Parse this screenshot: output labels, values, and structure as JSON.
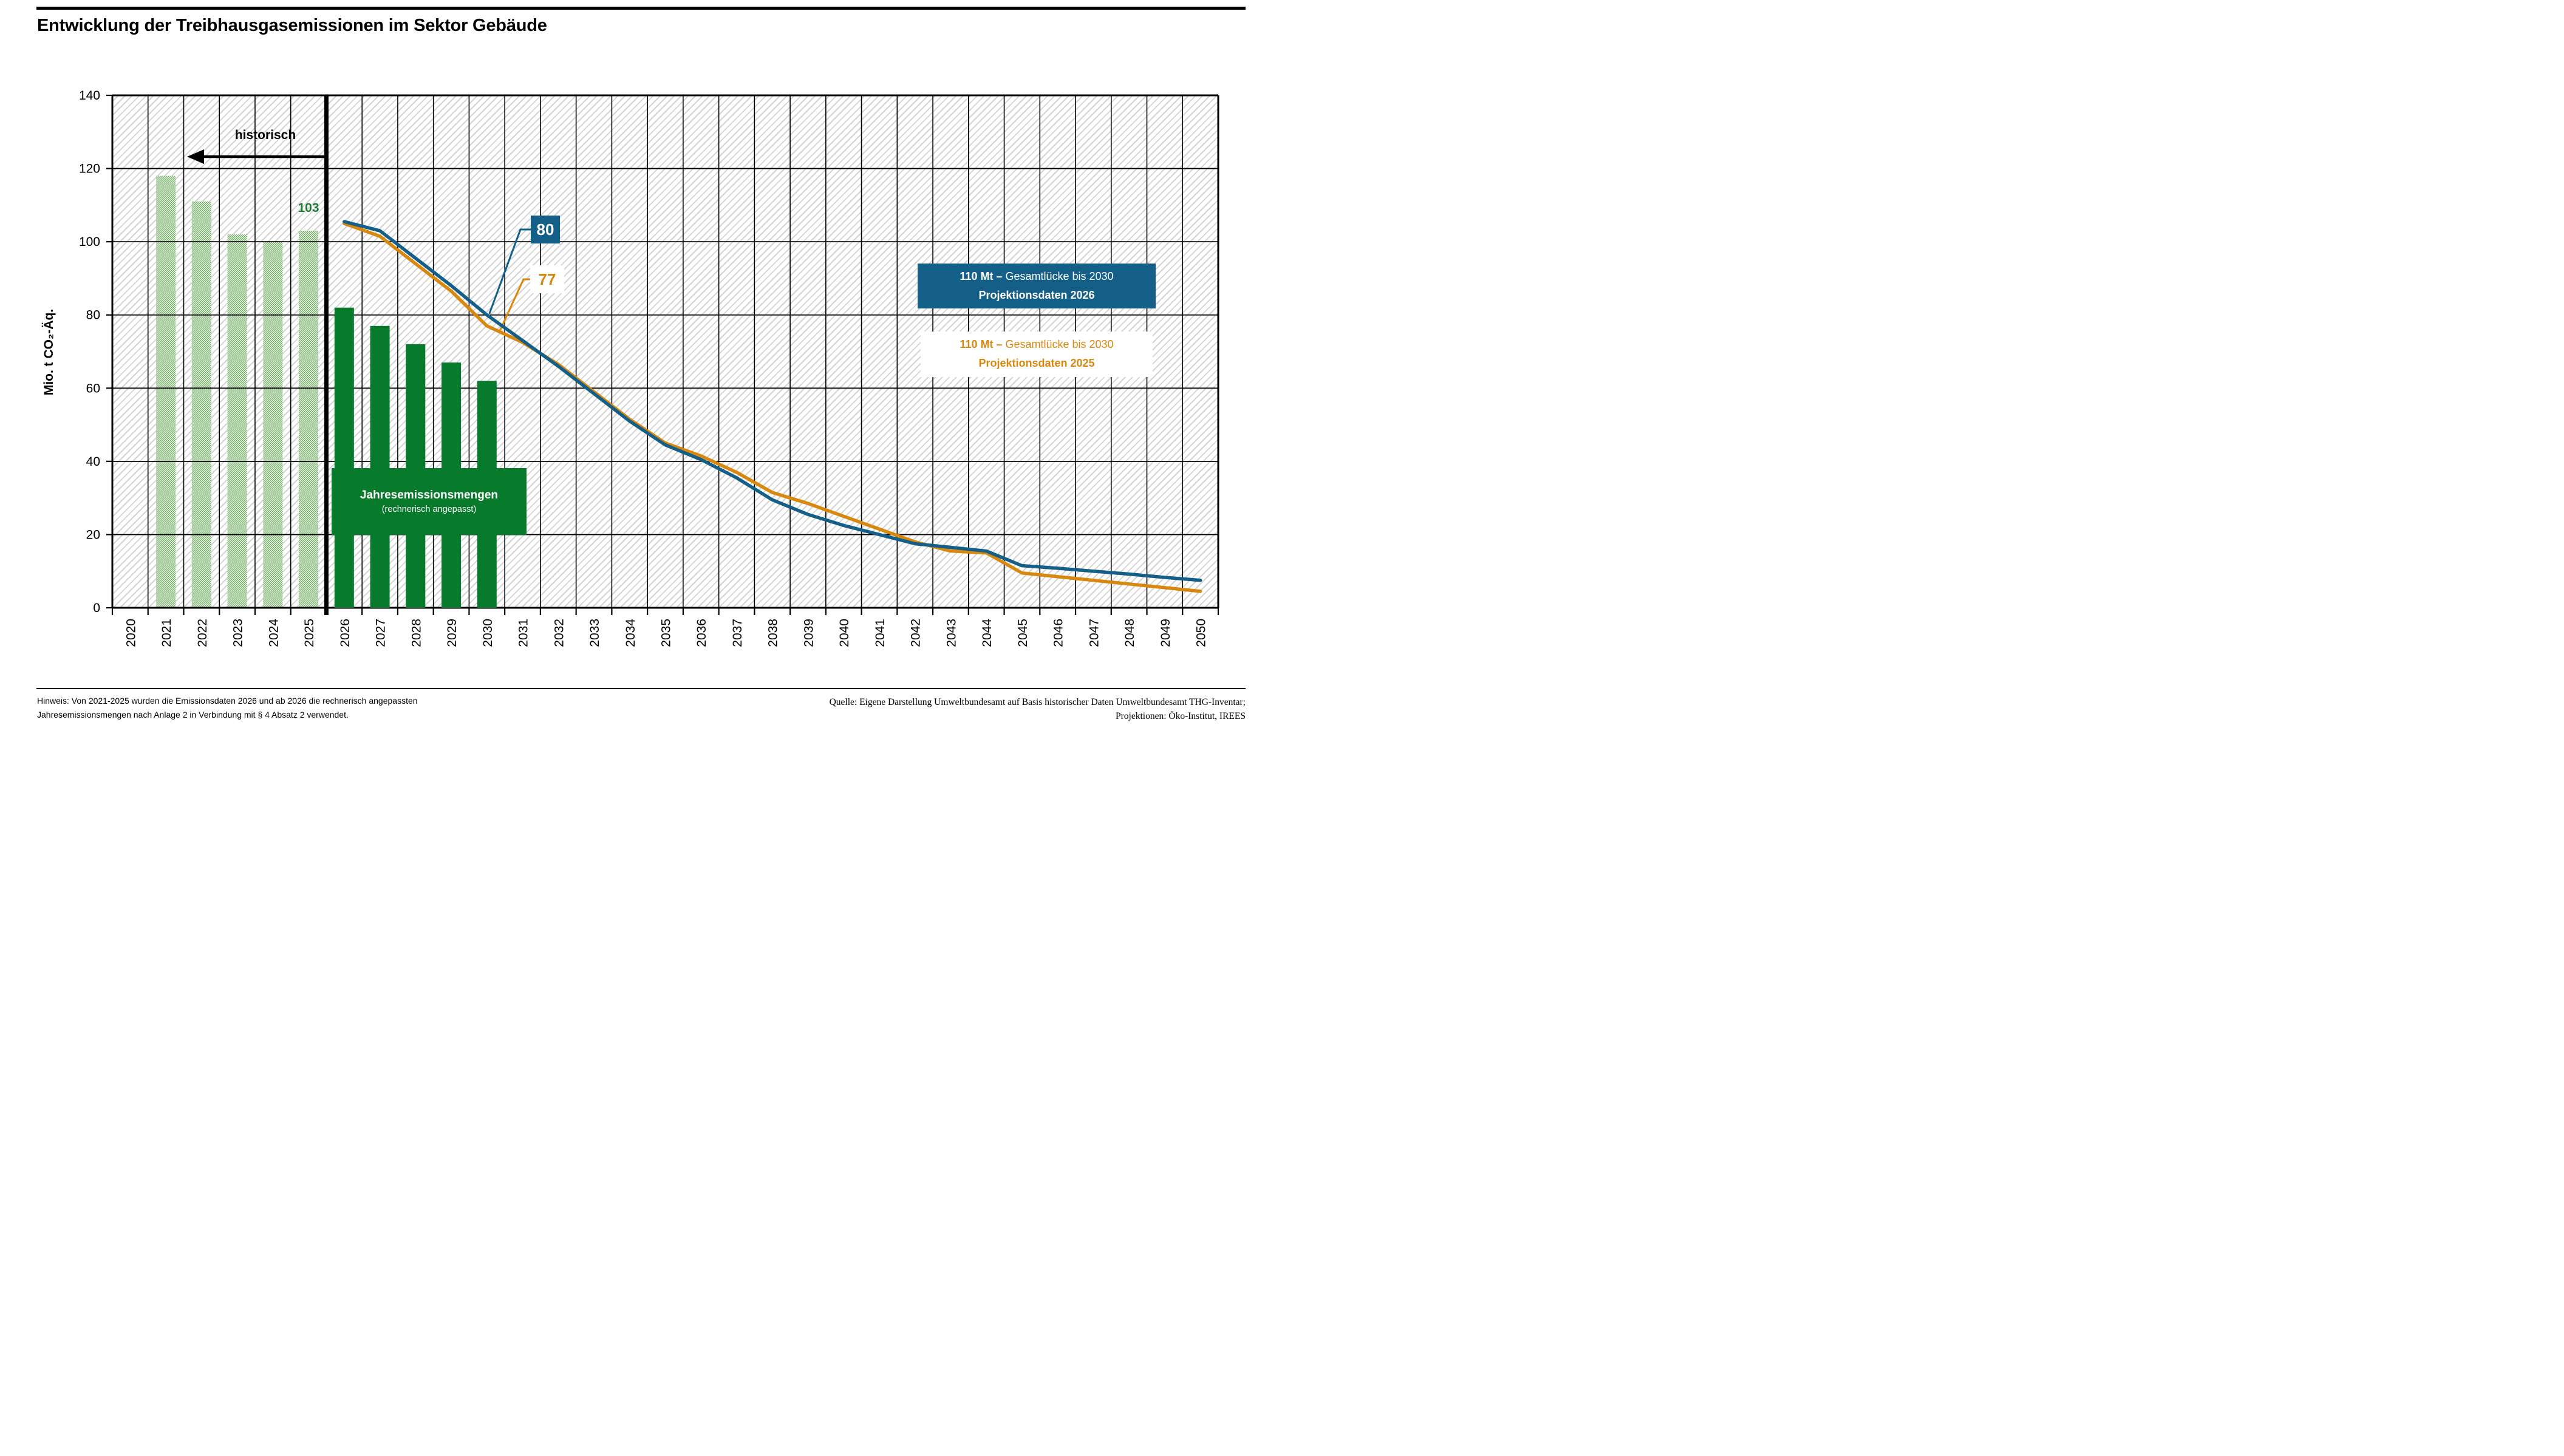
{
  "title": "Entwicklung der Treibhausgasemissionen im Sektor Gebäude",
  "y_axis_title": "Mio. t CO₂-Äq.",
  "annotations": {
    "historisch": "historisch",
    "bar_2025_label": "103",
    "callout_projection_2026": "80",
    "callout_projection_2025": "77"
  },
  "legend": {
    "box_2026": {
      "bold_part": "110 Mt – ",
      "rest_part": "Gesamtlücke bis 2030",
      "line2": "Projektionsdaten 2026",
      "bg_color": "#145f87",
      "text_color": "#ffffff"
    },
    "box_2025": {
      "bold_part": "110 Mt – ",
      "rest_part": "Gesamtlücke bis 2030",
      "line2": "Projektionsdaten 2025",
      "bg_color": "#ffffff",
      "text_color": "#d8880e"
    }
  },
  "green_box": {
    "line1": "Jahresemissionsmengen",
    "line2": "(rechnerisch angepasst)"
  },
  "footer": {
    "note_line1": "Hinweis: Von 2021-2025 wurden die Emissionsdaten 2026 und ab 2026 die rechnerisch angepassten",
    "note_line2": "Jahresemissionsmengen nach Anlage 2 in Verbindung mit § 4 Absatz 2  verwendet.",
    "source_line1": "Quelle: Eigene Darstellung Umweltbundesamt auf Basis historischer Daten Umweltbundesamt THG-Inventar;",
    "source_line2": "Projektionen: Öko-Institut, IREES"
  },
  "chart_data": {
    "type": "bar",
    "subtype": "combo-bar-line",
    "title": "Entwicklung der Treibhausgasemissionen im Sektor Gebäude",
    "xlabel": "",
    "ylabel": "Mio. t CO₂-Äq.",
    "ylim": [
      0,
      140
    ],
    "y_tick_step": 20,
    "grid": "both-black",
    "background": "diagonal-hatch",
    "legend_position": "inside-right",
    "divider_after_category": "2025",
    "categories": [
      "2020",
      "2021",
      "2022",
      "2023",
      "2024",
      "2025",
      "2026",
      "2027",
      "2028",
      "2029",
      "2030",
      "2031",
      "2032",
      "2033",
      "2034",
      "2035",
      "2036",
      "2037",
      "2038",
      "2039",
      "2040",
      "2041",
      "2042",
      "2043",
      "2044",
      "2045",
      "2046",
      "2047",
      "2048",
      "2049",
      "2050"
    ],
    "bar_series": [
      {
        "name": "historische Emissionen",
        "style": "light-green-pattern",
        "color": "#64a855",
        "values": [
          null,
          118,
          111,
          102,
          100,
          103,
          null,
          null,
          null,
          null,
          null,
          null,
          null,
          null,
          null,
          null,
          null,
          null,
          null,
          null,
          null,
          null,
          null,
          null,
          null,
          null,
          null,
          null,
          null,
          null,
          null
        ]
      },
      {
        "name": "Jahresemissionsmengen (rechnerisch angepasst)",
        "style": "solid-dark-green",
        "color": "#077a2b",
        "values": [
          null,
          null,
          null,
          null,
          null,
          null,
          82,
          77,
          72,
          67,
          62,
          null,
          null,
          null,
          null,
          null,
          null,
          null,
          null,
          null,
          null,
          null,
          null,
          null,
          null,
          null,
          null,
          null,
          null,
          null,
          null
        ]
      }
    ],
    "line_series": [
      {
        "name": "Projektionsdaten 2026",
        "color": "#145f87",
        "label_2030": 80,
        "values": [
          null,
          null,
          null,
          null,
          null,
          null,
          105.5,
          103,
          95.5,
          88,
          80,
          73,
          66,
          58.5,
          51,
          44.5,
          40.5,
          35.5,
          29.5,
          25.5,
          22.5,
          20,
          17.5,
          16.5,
          15.5,
          11.5,
          10.8,
          10,
          9.2,
          8.3,
          7.5
        ]
      },
      {
        "name": "Projektionsdaten 2025",
        "color": "#d8880e",
        "label_2030": 77,
        "values": [
          null,
          null,
          null,
          null,
          null,
          null,
          105,
          101.5,
          94,
          86.5,
          77,
          72.5,
          66.5,
          59,
          51.5,
          45,
          41.5,
          37,
          31.5,
          28.5,
          25,
          21.5,
          18,
          15.5,
          15,
          9.5,
          8.5,
          7.5,
          6.5,
          5.5,
          4.5
        ]
      }
    ]
  }
}
